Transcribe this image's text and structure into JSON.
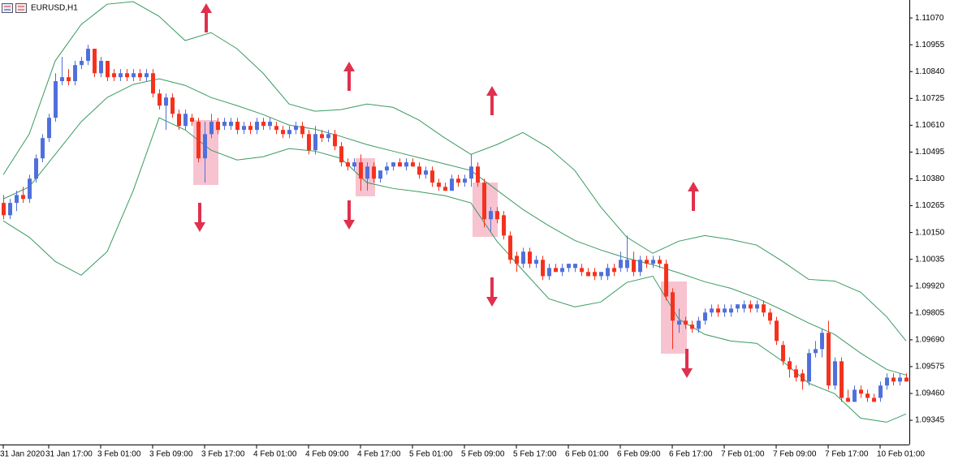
{
  "chart_data": {
    "type": "candlestick",
    "title": "EURUSD,H1",
    "xlim": [
      -0.5,
      139.5
    ],
    "xticks": [
      {
        "value": 0,
        "label": "31 Jan 2020"
      },
      {
        "value": 7,
        "label": "31 Jan 17:00"
      },
      {
        "value": 15,
        "label": "3 Feb 01:00"
      },
      {
        "value": 23,
        "label": "3 Feb 09:00"
      },
      {
        "value": 31,
        "label": "3 Feb 17:00"
      },
      {
        "value": 39,
        "label": "4 Feb 01:00"
      },
      {
        "value": 47,
        "label": "4 Feb 09:00"
      },
      {
        "value": 55,
        "label": "4 Feb 17:00"
      },
      {
        "value": 63,
        "label": "5 Feb 01:00"
      },
      {
        "value": 71,
        "label": "5 Feb 09:00"
      },
      {
        "value": 79,
        "label": "5 Feb 17:00"
      },
      {
        "value": 87,
        "label": "6 Feb 01:00"
      },
      {
        "value": 95,
        "label": "6 Feb 09:00"
      },
      {
        "value": 103,
        "label": "6 Feb 17:00"
      },
      {
        "value": 111,
        "label": "7 Feb 01:00"
      },
      {
        "value": 119,
        "label": "7 Feb 09:00"
      },
      {
        "value": 127,
        "label": "7 Feb 17:00"
      },
      {
        "value": 135,
        "label": "10 Feb 01:00"
      }
    ],
    "ylim": [
      1.09241,
      1.11147
    ],
    "yticks": [
      {
        "value": 1.1107,
        "label": "1.11070"
      },
      {
        "value": 1.10955,
        "label": "1.10955"
      },
      {
        "value": 1.1084,
        "label": "1.10840"
      },
      {
        "value": 1.10725,
        "label": "1.10725"
      },
      {
        "value": 1.1061,
        "label": "1.10610"
      },
      {
        "value": 1.10495,
        "label": "1.10495"
      },
      {
        "value": 1.1038,
        "label": "1.10380"
      },
      {
        "value": 1.10265,
        "label": "1.10265"
      },
      {
        "value": 1.1015,
        "label": "1.10150"
      },
      {
        "value": 1.10035,
        "label": "1.10035"
      },
      {
        "value": 1.0992,
        "label": "1.09920"
      },
      {
        "value": 1.09805,
        "label": "1.09805"
      },
      {
        "value": 1.0969,
        "label": "1.09690"
      },
      {
        "value": 1.09575,
        "label": "1.09575"
      },
      {
        "value": 1.0946,
        "label": "1.09460"
      },
      {
        "value": 1.09345,
        "label": "1.09345"
      }
    ],
    "grid": false,
    "candles": {
      "up_color": "#4f6fdc",
      "down_color": "#f5311c",
      "x": [
        0,
        1,
        2,
        3,
        4,
        5,
        6,
        7,
        8,
        9,
        10,
        11,
        12,
        13,
        14,
        15,
        16,
        17,
        18,
        19,
        20,
        21,
        22,
        23,
        24,
        25,
        26,
        27,
        28,
        29,
        30,
        31,
        32,
        33,
        34,
        35,
        36,
        37,
        38,
        39,
        40,
        41,
        42,
        43,
        44,
        45,
        46,
        47,
        48,
        49,
        50,
        51,
        52,
        53,
        54,
        55,
        56,
        57,
        58,
        59,
        60,
        61,
        62,
        63,
        64,
        65,
        66,
        67,
        68,
        69,
        70,
        71,
        72,
        73,
        74,
        75,
        76,
        77,
        78,
        79,
        80,
        81,
        82,
        83,
        84,
        85,
        86,
        87,
        88,
        89,
        90,
        91,
        92,
        93,
        94,
        95,
        96,
        97,
        98,
        99,
        100,
        101,
        102,
        103,
        104,
        105,
        106,
        107,
        108,
        109,
        110,
        111,
        112,
        113,
        114,
        115,
        116,
        117,
        118,
        119,
        120,
        121,
        122,
        123,
        124,
        125,
        126,
        127,
        128,
        129,
        130,
        131,
        132,
        133,
        134,
        135,
        136,
        137,
        138,
        139
      ],
      "open": [
        1.10277,
        1.10224,
        1.10277,
        1.10311,
        1.10294,
        1.10381,
        1.10468,
        1.10555,
        1.10642,
        1.10799,
        1.10816,
        1.10799,
        1.10868,
        1.10886,
        1.10938,
        1.10833,
        1.10886,
        1.10833,
        1.10816,
        1.10833,
        1.10816,
        1.10833,
        1.10816,
        1.10833,
        1.10746,
        1.10694,
        1.10729,
        1.10659,
        1.10607,
        1.10642,
        1.10625,
        1.10468,
        1.10572,
        1.10625,
        1.10607,
        1.10607,
        1.10625,
        1.1059,
        1.10607,
        1.1059,
        1.10625,
        1.10607,
        1.10607,
        1.1059,
        1.10572,
        1.1059,
        1.10607,
        1.10572,
        1.10503,
        1.10572,
        1.10555,
        1.10572,
        1.1052,
        1.10451,
        1.10433,
        1.10451,
        1.10381,
        1.10433,
        1.10381,
        1.10416,
        1.10433,
        1.10451,
        1.10433,
        1.10451,
        1.10433,
        1.10398,
        1.10416,
        1.10364,
        1.10346,
        1.10329,
        1.10381,
        1.10364,
        1.10381,
        1.10433,
        1.10364,
        1.10207,
        1.10242,
        1.10224,
        1.10137,
        1.1005,
        1.10016,
        1.10068,
        1.10016,
        1.10033,
        1.09963,
        1.09998,
        1.09981,
        1.09998,
        1.09998,
        1.09998,
        1.09981,
        1.09981,
        1.09963,
        1.09963,
        1.09998,
        1.09998,
        1.09998,
        1.10033,
        1.09981,
        1.10033,
        1.10016,
        1.10033,
        1.10016,
        1.09894,
        1.09755,
        1.09772,
        1.09755,
        1.09737,
        1.09772,
        1.09807,
        1.09824,
        1.09807,
        1.09807,
        1.09824,
        1.09824,
        1.09842,
        1.09824,
        1.09842,
        1.09807,
        1.09772,
        1.09668,
        1.09598,
        1.09563,
        1.09546,
        1.09511,
        1.09633,
        1.0965,
        1.0972,
        1.09494,
        1.09598,
        1.09441,
        1.09424,
        1.09476,
        1.09459,
        1.09441,
        1.09441,
        1.09494,
        1.09528,
        1.09511,
        1.09528
      ],
      "high": [
        1.10311,
        1.10294,
        1.10329,
        1.10346,
        1.10398,
        1.10485,
        1.10572,
        1.10659,
        1.10833,
        1.10903,
        1.10851,
        1.10886,
        1.10903,
        1.10955,
        1.10938,
        1.10903,
        1.10886,
        1.10851,
        1.10851,
        1.10851,
        1.10851,
        1.10851,
        1.10851,
        1.10851,
        1.10764,
        1.10746,
        1.10746,
        1.10677,
        1.10677,
        1.10659,
        1.10642,
        1.10625,
        1.10659,
        1.10642,
        1.10642,
        1.10642,
        1.10642,
        1.10625,
        1.10625,
        1.10642,
        1.10642,
        1.10642,
        1.10625,
        1.10607,
        1.10607,
        1.10625,
        1.10625,
        1.1059,
        1.10607,
        1.1059,
        1.1059,
        1.1059,
        1.10538,
        1.10468,
        1.10468,
        1.10485,
        1.10451,
        1.10451,
        1.10416,
        1.10451,
        1.10451,
        1.10468,
        1.10468,
        1.10468,
        1.10451,
        1.10433,
        1.10433,
        1.10381,
        1.10364,
        1.10398,
        1.10398,
        1.10398,
        1.10485,
        1.10451,
        1.10381,
        1.10259,
        1.10259,
        1.10242,
        1.10155,
        1.10068,
        1.10085,
        1.10085,
        1.1005,
        1.1005,
        1.10016,
        1.10016,
        1.10016,
        1.10016,
        1.10016,
        1.10016,
        1.09998,
        1.09998,
        1.09981,
        1.10016,
        1.10016,
        1.10068,
        1.10137,
        1.10068,
        1.1005,
        1.1005,
        1.1005,
        1.1005,
        1.10033,
        1.09911,
        1.09824,
        1.09789,
        1.09772,
        1.09789,
        1.09824,
        1.09842,
        1.09842,
        1.09842,
        1.09842,
        1.09842,
        1.09859,
        1.09859,
        1.09859,
        1.09859,
        1.09824,
        1.09789,
        1.09685,
        1.09615,
        1.09581,
        1.09563,
        1.0965,
        1.09685,
        1.09737,
        1.09772,
        1.09615,
        1.09615,
        1.09476,
        1.09494,
        1.09494,
        1.09476,
        1.09459,
        1.09511,
        1.09546,
        1.09546,
        1.09546,
        1.09546
      ],
      "low": [
        1.10207,
        1.10207,
        1.10242,
        1.10277,
        1.10277,
        1.10364,
        1.10451,
        1.10538,
        1.10625,
        1.10781,
        1.10781,
        1.10781,
        1.10851,
        1.10868,
        1.10816,
        1.10816,
        1.10799,
        1.10799,
        1.10799,
        1.10799,
        1.10799,
        1.10799,
        1.10799,
        1.10729,
        1.10677,
        1.1059,
        1.10642,
        1.1059,
        1.1059,
        1.10607,
        1.10451,
        1.10364,
        1.10555,
        1.10572,
        1.1059,
        1.1059,
        1.10572,
        1.10572,
        1.10572,
        1.10572,
        1.1059,
        1.1059,
        1.10572,
        1.10555,
        1.10555,
        1.10572,
        1.10555,
        1.10485,
        1.10485,
        1.10538,
        1.10538,
        1.10503,
        1.10433,
        1.10416,
        1.10416,
        1.10329,
        1.10329,
        1.10364,
        1.10364,
        1.10398,
        1.10416,
        1.10433,
        1.10416,
        1.10433,
        1.10381,
        1.10381,
        1.10346,
        1.10329,
        1.10329,
        1.10329,
        1.10346,
        1.10346,
        1.10346,
        1.10346,
        1.10172,
        1.10155,
        1.1019,
        1.1012,
        1.10016,
        1.09981,
        1.09998,
        1.09998,
        1.09998,
        1.09946,
        1.09946,
        1.09981,
        1.09963,
        1.09981,
        1.09981,
        1.09963,
        1.09963,
        1.09946,
        1.09946,
        1.09946,
        1.09963,
        1.09981,
        1.09981,
        1.09963,
        1.09963,
        1.09998,
        1.09998,
        1.09998,
        1.09859,
        1.0965,
        1.0972,
        1.09737,
        1.0972,
        1.0972,
        1.09755,
        1.09789,
        1.09789,
        1.09789,
        1.09789,
        1.09807,
        1.09807,
        1.09807,
        1.09807,
        1.09789,
        1.09755,
        1.09668,
        1.09581,
        1.09528,
        1.09511,
        1.09476,
        1.09494,
        1.09615,
        1.09615,
        1.09476,
        1.09476,
        1.09424,
        1.09424,
        1.09424,
        1.09441,
        1.09424,
        1.09424,
        1.09424,
        1.09476,
        1.09494,
        1.09494,
        1.09511
      ],
      "close": [
        1.10224,
        1.10277,
        1.10311,
        1.10294,
        1.10381,
        1.10468,
        1.10555,
        1.10642,
        1.10799,
        1.10816,
        1.10799,
        1.10868,
        1.10886,
        1.10938,
        1.10833,
        1.10886,
        1.10816,
        1.10816,
        1.10833,
        1.10816,
        1.10833,
        1.10816,
        1.10833,
        1.10746,
        1.10694,
        1.10729,
        1.10659,
        1.10607,
        1.10659,
        1.10625,
        1.10468,
        1.10572,
        1.10625,
        1.1059,
        1.10625,
        1.10625,
        1.1059,
        1.10607,
        1.1059,
        1.10625,
        1.10607,
        1.10625,
        1.1059,
        1.10572,
        1.1059,
        1.10607,
        1.10572,
        1.10503,
        1.10572,
        1.10555,
        1.10572,
        1.1052,
        1.10451,
        1.10433,
        1.10451,
        1.10381,
        1.10433,
        1.10381,
        1.10416,
        1.10433,
        1.10451,
        1.10433,
        1.10451,
        1.10433,
        1.10398,
        1.10416,
        1.10364,
        1.10346,
        1.10329,
        1.10381,
        1.10364,
        1.10381,
        1.10433,
        1.10364,
        1.10207,
        1.10242,
        1.10207,
        1.10137,
        1.10033,
        1.10016,
        1.10068,
        1.10016,
        1.10033,
        1.09963,
        1.09998,
        1.09981,
        1.09998,
        1.10016,
        1.10016,
        1.09981,
        1.09963,
        1.09963,
        1.09981,
        1.09998,
        1.09981,
        1.10033,
        1.10033,
        1.09981,
        1.10033,
        1.10016,
        1.10033,
        1.10016,
        1.09876,
        1.09772,
        1.09772,
        1.09755,
        1.09737,
        1.09772,
        1.09807,
        1.09824,
        1.09807,
        1.09824,
        1.09824,
        1.09842,
        1.09842,
        1.09824,
        1.09842,
        1.09807,
        1.09772,
        1.09685,
        1.09598,
        1.09563,
        1.09528,
        1.09511,
        1.09633,
        1.0965,
        1.0972,
        1.09494,
        1.09598,
        1.09441,
        1.09424,
        1.09476,
        1.09459,
        1.09441,
        1.09424,
        1.09494,
        1.09528,
        1.09511,
        1.09528,
        1.09511
      ]
    },
    "bands": {
      "color": "#3a9a62",
      "x": [
        0,
        4,
        8,
        12,
        16,
        20,
        24,
        28,
        32,
        36,
        40,
        44,
        48,
        52,
        56,
        60,
        64,
        68,
        72,
        76,
        80,
        84,
        88,
        92,
        96,
        100,
        104,
        108,
        112,
        116,
        120,
        124,
        128,
        132,
        136,
        139
      ],
      "upper": [
        1.10398,
        1.10572,
        1.10886,
        1.11042,
        1.11129,
        1.1114,
        1.11077,
        1.10973,
        1.11007,
        1.10938,
        1.10833,
        1.10701,
        1.1067,
        1.10677,
        1.10701,
        1.10687,
        1.10632,
        1.10555,
        1.10485,
        1.10527,
        1.10579,
        1.10513,
        1.10416,
        1.10259,
        1.1013,
        1.10061,
        1.10113,
        1.10137,
        1.1012,
        1.10096,
        1.10026,
        1.09949,
        1.09942,
        1.09894,
        1.09789,
        1.09685
      ],
      "middle": [
        1.10294,
        1.10346,
        1.10485,
        1.10625,
        1.10729,
        1.10785,
        1.10809,
        1.10781,
        1.10729,
        1.10694,
        1.10656,
        1.10611,
        1.10593,
        1.10562,
        1.10527,
        1.10499,
        1.10471,
        1.10444,
        1.10416,
        1.10332,
        1.10249,
        1.10179,
        1.10116,
        1.10075,
        1.1004,
        1.10012,
        1.09977,
        1.09939,
        1.09911,
        1.09869,
        1.09817,
        1.09762,
        1.09713,
        1.09633,
        1.09563,
        1.09539
      ],
      "lower": [
        1.102,
        1.1013,
        1.10026,
        1.09967,
        1.10068,
        1.10329,
        1.10642,
        1.1059,
        1.10503,
        1.10461,
        1.10475,
        1.1051,
        1.10499,
        1.10468,
        1.10364,
        1.10339,
        1.10325,
        1.10308,
        1.10277,
        1.10113,
        1.09988,
        1.09866,
        1.09831,
        1.09852,
        1.09936,
        1.09963,
        1.09779,
        1.09713,
        1.09685,
        1.09675,
        1.09598,
        1.09504,
        1.09459,
        1.09354,
        1.09337,
        1.09372
      ]
    }
  }
}
